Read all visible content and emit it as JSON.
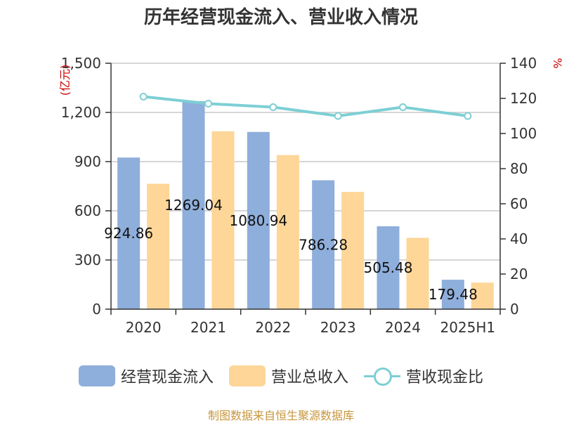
{
  "title": "历年经营现金流入、营业收入情况",
  "source_text": "制图数据来自恒生聚源数据库",
  "colors": {
    "bar1": "#8eaedb",
    "bar2": "#fdd698",
    "line": "#7dcfd4",
    "unit": "#cc0000",
    "source": "#c8963c"
  },
  "chart_data": {
    "type": "bar",
    "categories": [
      "2020",
      "2021",
      "2022",
      "2023",
      "2024",
      "2025H1"
    ],
    "series": [
      {
        "name": "经营现金流入",
        "type": "bar",
        "axis": "left",
        "values": [
          924.86,
          1269.04,
          1080.94,
          786.28,
          505.48,
          179.48
        ],
        "labels": [
          "924.86",
          "1269.04",
          "1080.94",
          "786.28",
          "505.48",
          "179.48"
        ]
      },
      {
        "name": "营业总收入",
        "type": "bar",
        "axis": "left",
        "values": [
          765,
          1085,
          940,
          715,
          435,
          162
        ]
      },
      {
        "name": "营收现金比",
        "type": "line",
        "axis": "right",
        "values": [
          121,
          117,
          115,
          110,
          115,
          110
        ]
      }
    ],
    "y_left": {
      "label": "(亿元)",
      "range": [
        0,
        1500
      ],
      "ticks": [
        0,
        300,
        600,
        900,
        1200,
        1500
      ],
      "tick_labels": [
        "0",
        "300",
        "600",
        "900",
        "1,200",
        "1,500"
      ]
    },
    "y_right": {
      "label": "%",
      "range": [
        0,
        140
      ],
      "ticks": [
        0,
        20,
        40,
        60,
        80,
        100,
        120,
        140
      ],
      "tick_labels": [
        "0",
        "20",
        "40",
        "60",
        "80",
        "100",
        "120",
        "140"
      ]
    },
    "grid": true,
    "legend_position": "bottom"
  }
}
